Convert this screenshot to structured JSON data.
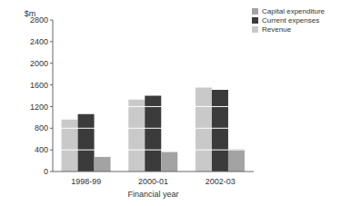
{
  "chart_data": {
    "type": "bar",
    "y_label": "$m",
    "x_label": "Financial year",
    "categories": [
      "1998-99",
      "2000-01",
      "2002-03"
    ],
    "series": [
      {
        "name": "Revenue",
        "color": "#c9c9c9",
        "values": [
          960,
          1330,
          1550
        ]
      },
      {
        "name": "Current expenses",
        "color": "#3b3b3b",
        "values": [
          1060,
          1400,
          1510
        ]
      },
      {
        "name": "Capital expenditure",
        "color": "#a3a3a3",
        "values": [
          270,
          360,
          410
        ]
      }
    ],
    "ylim": [
      0,
      2800
    ],
    "yticks": [
      0,
      400,
      800,
      1200,
      1600,
      2000,
      2400,
      2800
    ],
    "grid": true,
    "legend": "top-right"
  }
}
